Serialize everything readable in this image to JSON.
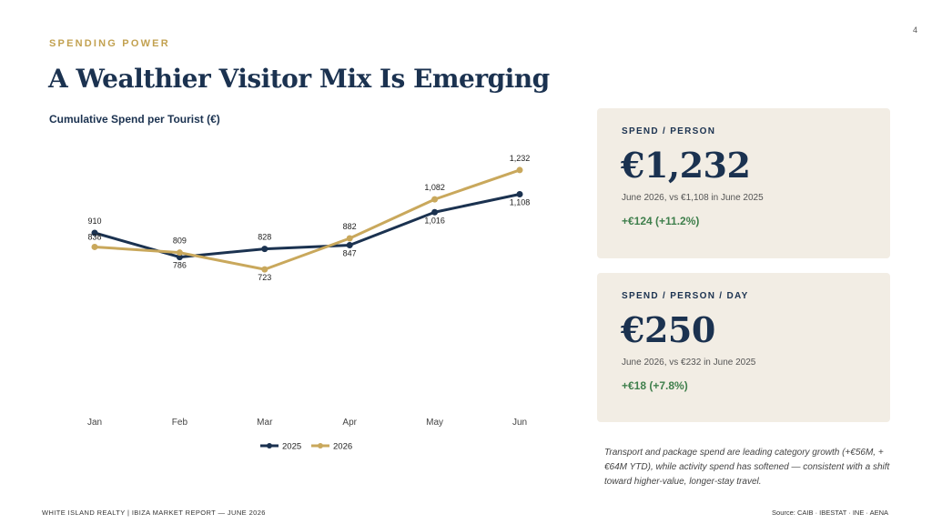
{
  "page": {
    "number": "4",
    "eyebrow": "SPENDING POWER",
    "title": "A Wealthier Visitor Mix Is Emerging",
    "chart_title": "Cumulative Spend per Tourist (€)"
  },
  "colors": {
    "navy": "#1b3250",
    "gold": "#c9a85c",
    "green": "#3f7f4c",
    "card_bg": "#f2ede4"
  },
  "chart_data": {
    "type": "line",
    "title": "Cumulative Spend per Tourist (€)",
    "categories": [
      "Jan",
      "Feb",
      "Mar",
      "Apr",
      "May",
      "Jun"
    ],
    "series": [
      {
        "name": "2025",
        "color": "#1b3250",
        "values": [
          910,
          786,
          828,
          847,
          1016,
          1108
        ],
        "labels": [
          "910",
          "786",
          "828",
          "847",
          "1,016",
          "1,108"
        ]
      },
      {
        "name": "2026",
        "color": "#c9a85c",
        "values": [
          838,
          809,
          723,
          882,
          1082,
          1232
        ],
        "labels": [
          "838",
          "809",
          "723",
          "882",
          "1,082",
          "1,232"
        ]
      }
    ],
    "legend": "bottom",
    "grid": false
  },
  "cards": [
    {
      "label": "SPEND / PERSON",
      "value": "€1,232",
      "sub": "June 2026, vs €1,108 in June 2025",
      "change": "+€124  (+11.2%)"
    },
    {
      "label": "SPEND / PERSON / DAY",
      "value": "€250",
      "sub": "June 2026, vs €232 in June 2025",
      "change": "+€18  (+7.8%)"
    }
  ],
  "note": "Transport and package spend are leading category growth (+€56M, +€64M YTD), while activity spend has softened — consistent with a shift toward higher-value, longer-stay travel.",
  "footer": {
    "left": "WHITE ISLAND REALTY   |   IBIZA MARKET REPORT — JUNE 2026",
    "right": "Source: CAIB · IBESTAT · INE · AENA"
  }
}
